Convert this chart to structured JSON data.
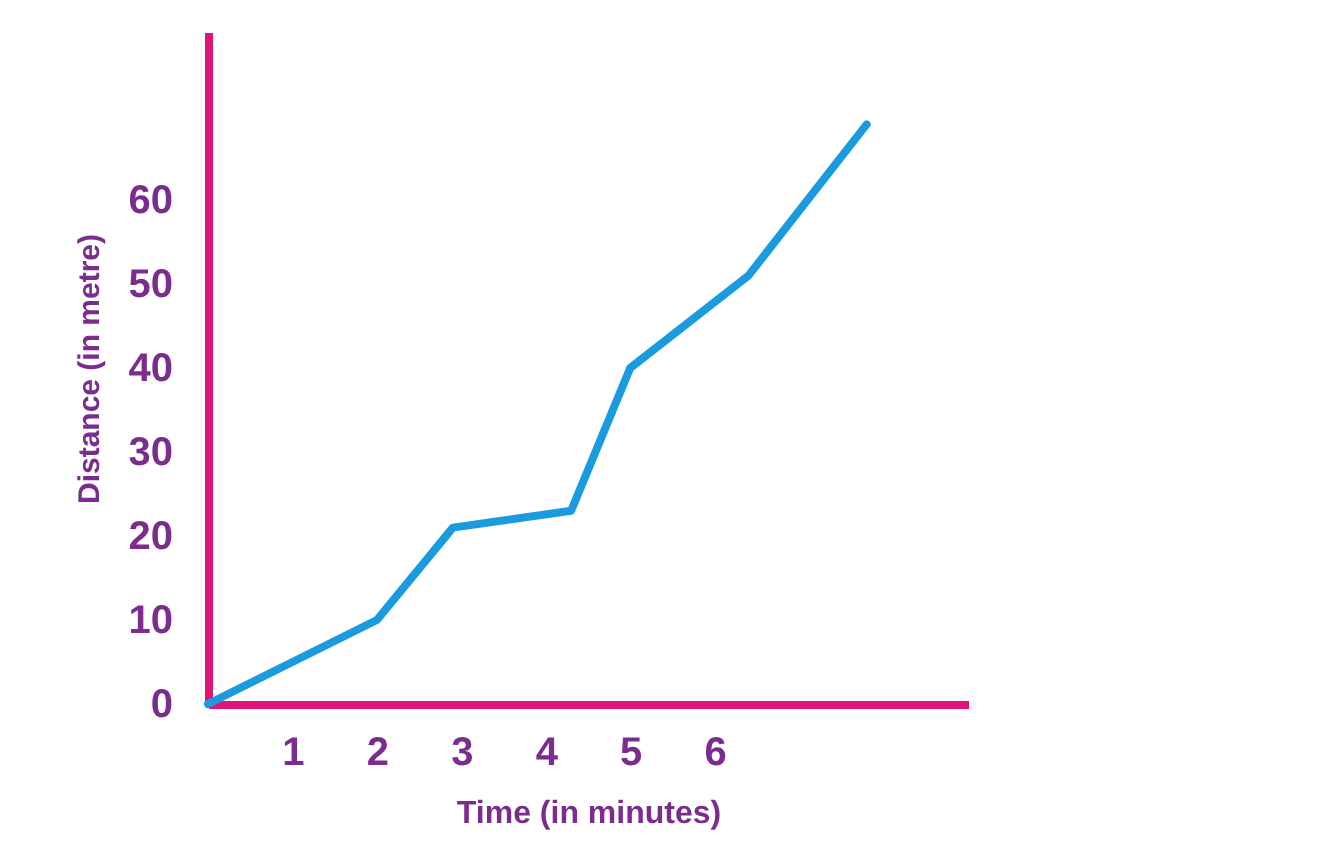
{
  "chart_data": {
    "type": "line",
    "xlabel": "Time (in minutes)",
    "ylabel": "Distance (in metre)",
    "x": [
      0,
      2,
      2.9,
      4.3,
      5,
      6.4,
      7.8
    ],
    "series": [
      {
        "color": "#1a9be0",
        "values": [
          0,
          10,
          21,
          23,
          40,
          51,
          69
        ]
      }
    ],
    "xlim": [
      0,
      9
    ],
    "xticks": [
      1,
      2,
      3,
      4,
      5,
      6
    ],
    "ylim": [
      0,
      80
    ],
    "yticks": [
      0,
      10,
      20,
      30,
      40,
      50,
      60
    ],
    "grid": false,
    "marker": "none",
    "line_style": "solid"
  }
}
